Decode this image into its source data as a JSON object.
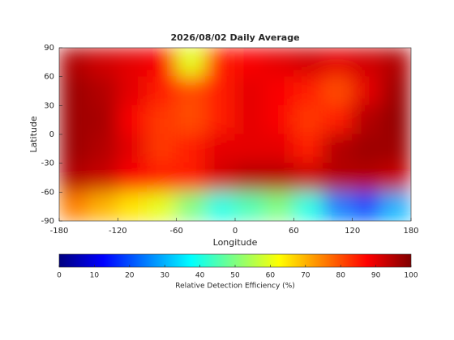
{
  "chart_data": {
    "type": "heatmap",
    "title": "2026/08/02 Daily Average",
    "xlabel": "Longitude",
    "ylabel": "Latitude",
    "xlim": [
      -180,
      180
    ],
    "ylim": [
      -90,
      90
    ],
    "xticks": [
      -180,
      -120,
      -60,
      0,
      60,
      120,
      180
    ],
    "yticks": [
      -90,
      -60,
      -30,
      0,
      30,
      60,
      90
    ],
    "colormap": "jet",
    "values": [
      [
        95,
        92,
        90,
        88,
        60,
        85,
        88,
        90,
        92,
        90,
        92,
        95
      ],
      [
        97,
        95,
        90,
        85,
        80,
        85,
        90,
        88,
        85,
        80,
        90,
        97
      ],
      [
        97,
        96,
        88,
        82,
        80,
        85,
        90,
        88,
        82,
        85,
        95,
        98
      ],
      [
        97,
        95,
        90,
        82,
        85,
        90,
        90,
        90,
        85,
        95,
        97,
        97
      ],
      [
        95,
        93,
        88,
        85,
        85,
        92,
        95,
        95,
        93,
        95,
        95,
        93
      ],
      [
        75,
        70,
        65,
        60,
        50,
        40,
        45,
        50,
        40,
        25,
        20,
        30
      ]
    ],
    "colorbar": {
      "label": "Relative Detection Efficiency (%)",
      "lim": [
        0,
        100
      ],
      "ticks": [
        0,
        10,
        20,
        30,
        40,
        50,
        60,
        70,
        80,
        90,
        100
      ]
    }
  }
}
